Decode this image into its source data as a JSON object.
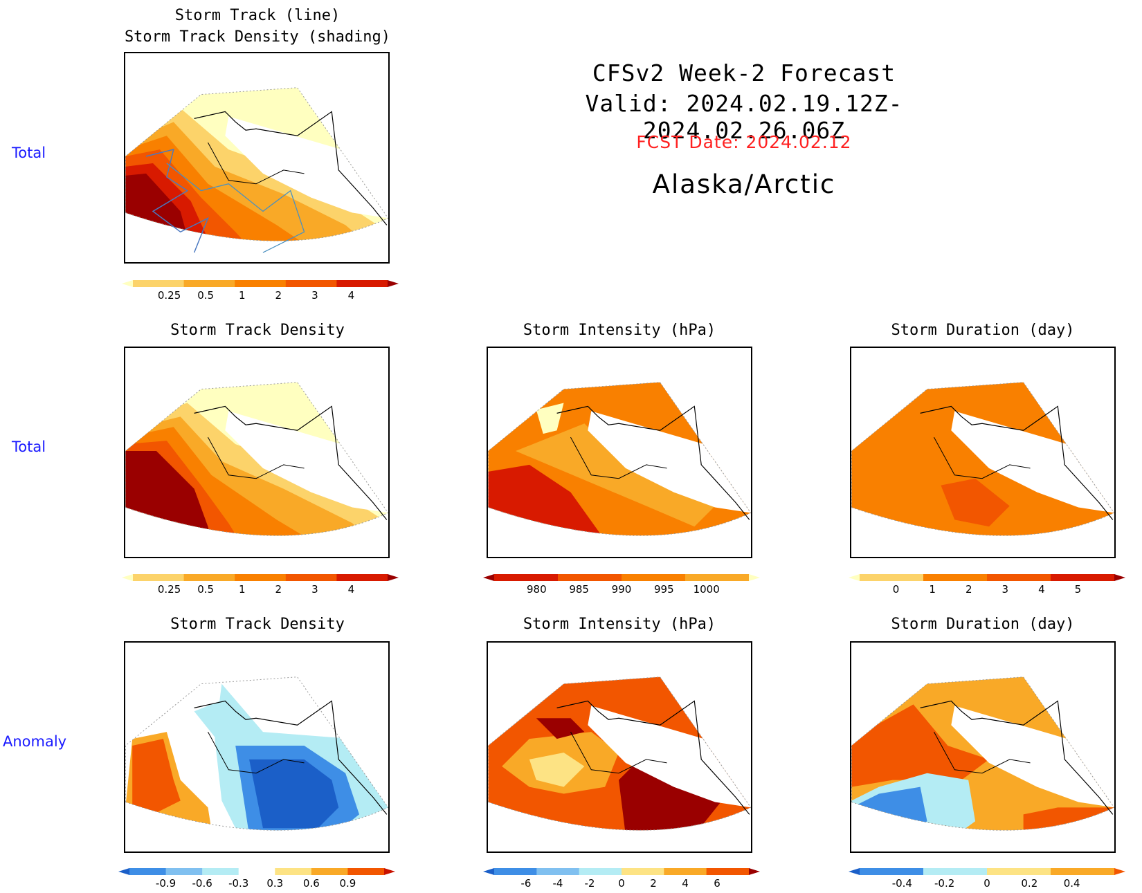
{
  "header": {
    "title_line1": "CFSv2 Week-2 Forecast",
    "title_line2": "Valid: 2024.02.19.12Z-2024.02.26.06Z",
    "fcst_date": "FCST Date: 2024.02.12",
    "region": "Alaska/Arctic"
  },
  "rows": [
    {
      "label": "Total"
    },
    {
      "label": "Total"
    },
    {
      "label": "Anomaly"
    }
  ],
  "panels": {
    "top": {
      "title_line1": "Storm Track (line)",
      "title_line2": "Storm Track Density (shading)"
    },
    "density_total": {
      "title": "Storm Track Density"
    },
    "intensity_total": {
      "title": "Storm Intensity (hPa)"
    },
    "duration_total": {
      "title": "Storm Duration (day)"
    },
    "density_anom": {
      "title": "Storm Track Density"
    },
    "intensity_anom": {
      "title": "Storm Intensity (hPa)"
    },
    "duration_anom": {
      "title": "Storm Duration (day)"
    }
  },
  "colorbars": {
    "density": {
      "labels": [
        "0.25",
        "0.5",
        "1",
        "2",
        "3",
        "4"
      ],
      "colors": [
        "#ffffc0",
        "#fcd36a",
        "#f9a927",
        "#f98000",
        "#f25600",
        "#d81a00",
        "#9a0000"
      ]
    },
    "intensity": {
      "labels": [
        "980",
        "985",
        "990",
        "995",
        "1000"
      ],
      "colors": [
        "#9a0000",
        "#d81a00",
        "#f25600",
        "#f98000",
        "#f9a927",
        "#ffffc0"
      ]
    },
    "duration": {
      "labels": [
        "0",
        "1",
        "2",
        "3",
        "4",
        "5"
      ],
      "colors": [
        "#ffffc0",
        "#fcd36a",
        "#f98000",
        "#f25600",
        "#d81a00",
        "#9a0000"
      ]
    },
    "density_anom": {
      "labels": [
        "-0.9",
        "-0.6",
        "-0.3",
        "0.3",
        "0.6",
        "0.9"
      ],
      "colors": [
        "#1b5fc8",
        "#3e8ee6",
        "#80c0f0",
        "#b4ecf4",
        "#ffffff",
        "#fde384",
        "#f9a927",
        "#f25600",
        "#c81200"
      ]
    },
    "intensity_anom": {
      "labels": [
        "-6",
        "-4",
        "-2",
        "0",
        "2",
        "4",
        "6"
      ],
      "colors": [
        "#1b5fc8",
        "#3e8ee6",
        "#80c0f0",
        "#b4ecf4",
        "#fde384",
        "#f9a927",
        "#f25600",
        "#9a0000"
      ]
    },
    "duration_anom": {
      "labels": [
        "-0.4",
        "-0.2",
        "0",
        "0.2",
        "0.4"
      ],
      "colors": [
        "#1b5fc8",
        "#3e8ee6",
        "#b4ecf4",
        "#fde384",
        "#f9a927",
        "#f25600"
      ]
    }
  }
}
